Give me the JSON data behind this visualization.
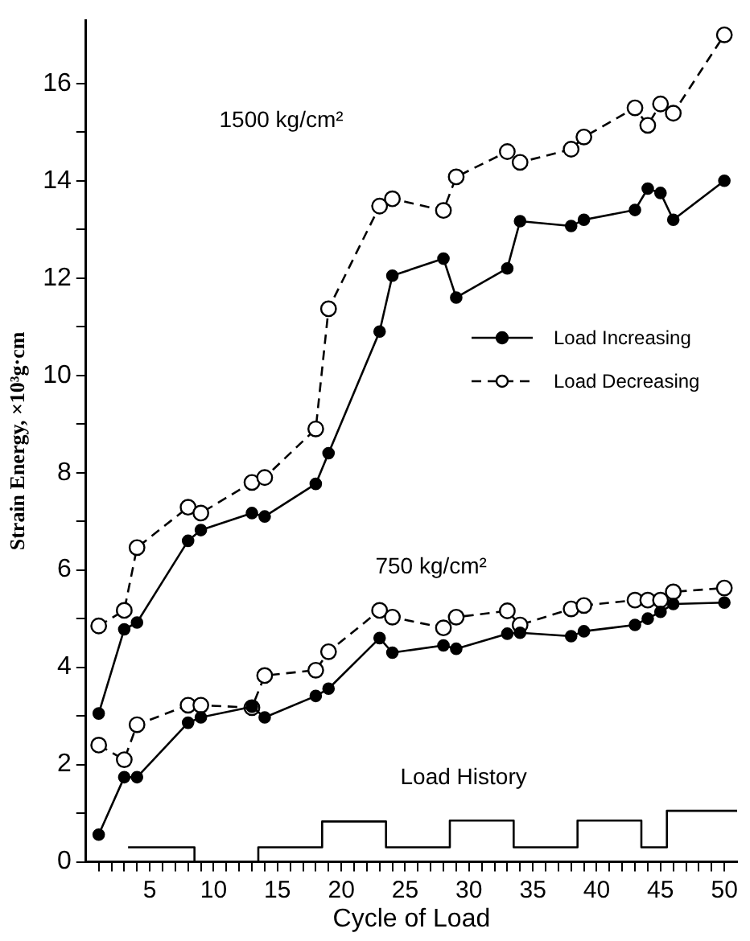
{
  "chart_data": {
    "type": "line",
    "xlabel": "Cycle of Load",
    "ylabel": "Strain Energy, ×10³g·cm",
    "xlim": [
      0,
      51
    ],
    "ylim": [
      0,
      17.3
    ],
    "xticks": [
      {
        "value": 1,
        "label": null
      },
      {
        "value": 2,
        "label": null
      },
      {
        "value": 3,
        "label": null
      },
      {
        "value": 4,
        "label": null
      },
      5,
      {
        "value": 6,
        "label": null
      },
      {
        "value": 7,
        "label": null
      },
      {
        "value": 8,
        "label": null
      },
      {
        "value": 9,
        "label": null
      },
      10,
      {
        "value": 11,
        "label": null
      },
      {
        "value": 12,
        "label": null
      },
      {
        "value": 13,
        "label": null
      },
      {
        "value": 14,
        "label": null
      },
      15,
      {
        "value": 16,
        "label": null
      },
      {
        "value": 17,
        "label": null
      },
      {
        "value": 18,
        "label": null
      },
      {
        "value": 19,
        "label": null
      },
      20,
      {
        "value": 21,
        "label": null
      },
      {
        "value": 22,
        "label": null
      },
      {
        "value": 23,
        "label": null
      },
      {
        "value": 24,
        "label": null
      },
      25,
      {
        "value": 26,
        "label": null
      },
      {
        "value": 27,
        "label": null
      },
      {
        "value": 28,
        "label": null
      },
      {
        "value": 29,
        "label": null
      },
      30,
      {
        "value": 31,
        "label": null
      },
      {
        "value": 32,
        "label": null
      },
      {
        "value": 33,
        "label": null
      },
      {
        "value": 34,
        "label": null
      },
      35,
      {
        "value": 36,
        "label": null
      },
      {
        "value": 37,
        "label": null
      },
      {
        "value": 38,
        "label": null
      },
      {
        "value": 39,
        "label": null
      },
      40,
      {
        "value": 41,
        "label": null
      },
      {
        "value": 42,
        "label": null
      },
      {
        "value": 43,
        "label": null
      },
      {
        "value": 44,
        "label": null
      },
      45,
      {
        "value": 46,
        "label": null
      },
      {
        "value": 47,
        "label": null
      },
      {
        "value": 48,
        "label": null
      },
      {
        "value": 49,
        "label": null
      },
      50
    ],
    "yticks": [
      0,
      {
        "value": 1,
        "label": null
      },
      2,
      {
        "value": 3,
        "label": null
      },
      4,
      {
        "value": 5,
        "label": null
      },
      6,
      {
        "value": 7,
        "label": null
      },
      8,
      {
        "value": 9,
        "label": null
      },
      10,
      {
        "value": 11,
        "label": null
      },
      12,
      {
        "value": 13,
        "label": null
      },
      14,
      {
        "value": 15,
        "label": null
      },
      16
    ],
    "grid": false,
    "legend": "right",
    "marker": "circle",
    "series": [
      {
        "name": "Load Increasing",
        "color": "#000000",
        "line_style": "solid",
        "x": [
          1,
          3,
          4,
          8,
          9,
          13,
          14,
          18,
          19,
          23,
          24,
          28,
          29,
          33,
          34,
          38,
          39,
          43,
          44,
          45,
          46,
          50
        ],
        "values": [
          3.05,
          4.78,
          4.92,
          6.6,
          6.82,
          7.17,
          7.1,
          7.77,
          8.4,
          10.9,
          12.05,
          12.4,
          11.6,
          12.2,
          13.17,
          13.07,
          13.2,
          13.4,
          13.84,
          13.75,
          13.2,
          14.0
        ]
      },
      {
        "name": "Load Decreasing",
        "color": "#000000",
        "line_style": "dashed",
        "x": [
          1,
          3,
          4,
          8,
          9,
          13,
          14,
          18,
          19,
          23,
          24,
          28,
          29,
          33,
          34,
          38,
          39,
          43,
          44,
          45,
          46,
          50
        ],
        "values": [
          4.85,
          5.17,
          6.46,
          7.29,
          7.17,
          7.8,
          7.9,
          8.9,
          11.37,
          13.48,
          13.63,
          13.39,
          14.08,
          14.6,
          14.38,
          14.65,
          14.9,
          15.5,
          15.14,
          15.58,
          15.39,
          17.0
        ]
      },
      {
        "color": "#000000",
        "line_style": "solid",
        "x": [
          1,
          3,
          4,
          8,
          9,
          13,
          14,
          18,
          19,
          23,
          24,
          28,
          29,
          33,
          34,
          38,
          39,
          43,
          44,
          45,
          46,
          50
        ],
        "values": [
          0.56,
          1.74,
          1.74,
          2.86,
          2.97,
          3.19,
          2.97,
          3.41,
          3.56,
          4.6,
          4.3,
          4.45,
          4.38,
          4.69,
          4.71,
          4.64,
          4.74,
          4.87,
          5.0,
          5.14,
          5.3,
          5.33
        ]
      },
      {
        "color": "#000000",
        "line_style": "dashed",
        "x": [
          1,
          3,
          4,
          8,
          9,
          13,
          14,
          18,
          19,
          23,
          24,
          28,
          29,
          33,
          34,
          38,
          39,
          43,
          44,
          45,
          46,
          50
        ],
        "values": [
          2.4,
          2.1,
          2.82,
          3.22,
          3.22,
          3.17,
          3.83,
          3.94,
          4.32,
          5.17,
          5.03,
          4.81,
          5.03,
          5.16,
          4.87,
          5.2,
          5.27,
          5.38,
          5.38,
          5.38,
          5.55,
          5.63
        ]
      },
      {
        "type": "step",
        "color": "#000000",
        "marker": "none",
        "line_style": "solid",
        "x": [
          3.3,
          8.5,
          13.5,
          18.5,
          23.5,
          28.5,
          33.5,
          38.5,
          43.5,
          45.5,
          51
        ],
        "values": [
          0.3,
          0,
          0.3,
          0.83,
          0.3,
          0.85,
          0.3,
          0.85,
          0.3,
          1.05,
          1.05
        ]
      }
    ],
    "annotations": [
      "1500 kg/cm²",
      "750 kg/cm²",
      "Load History"
    ]
  }
}
